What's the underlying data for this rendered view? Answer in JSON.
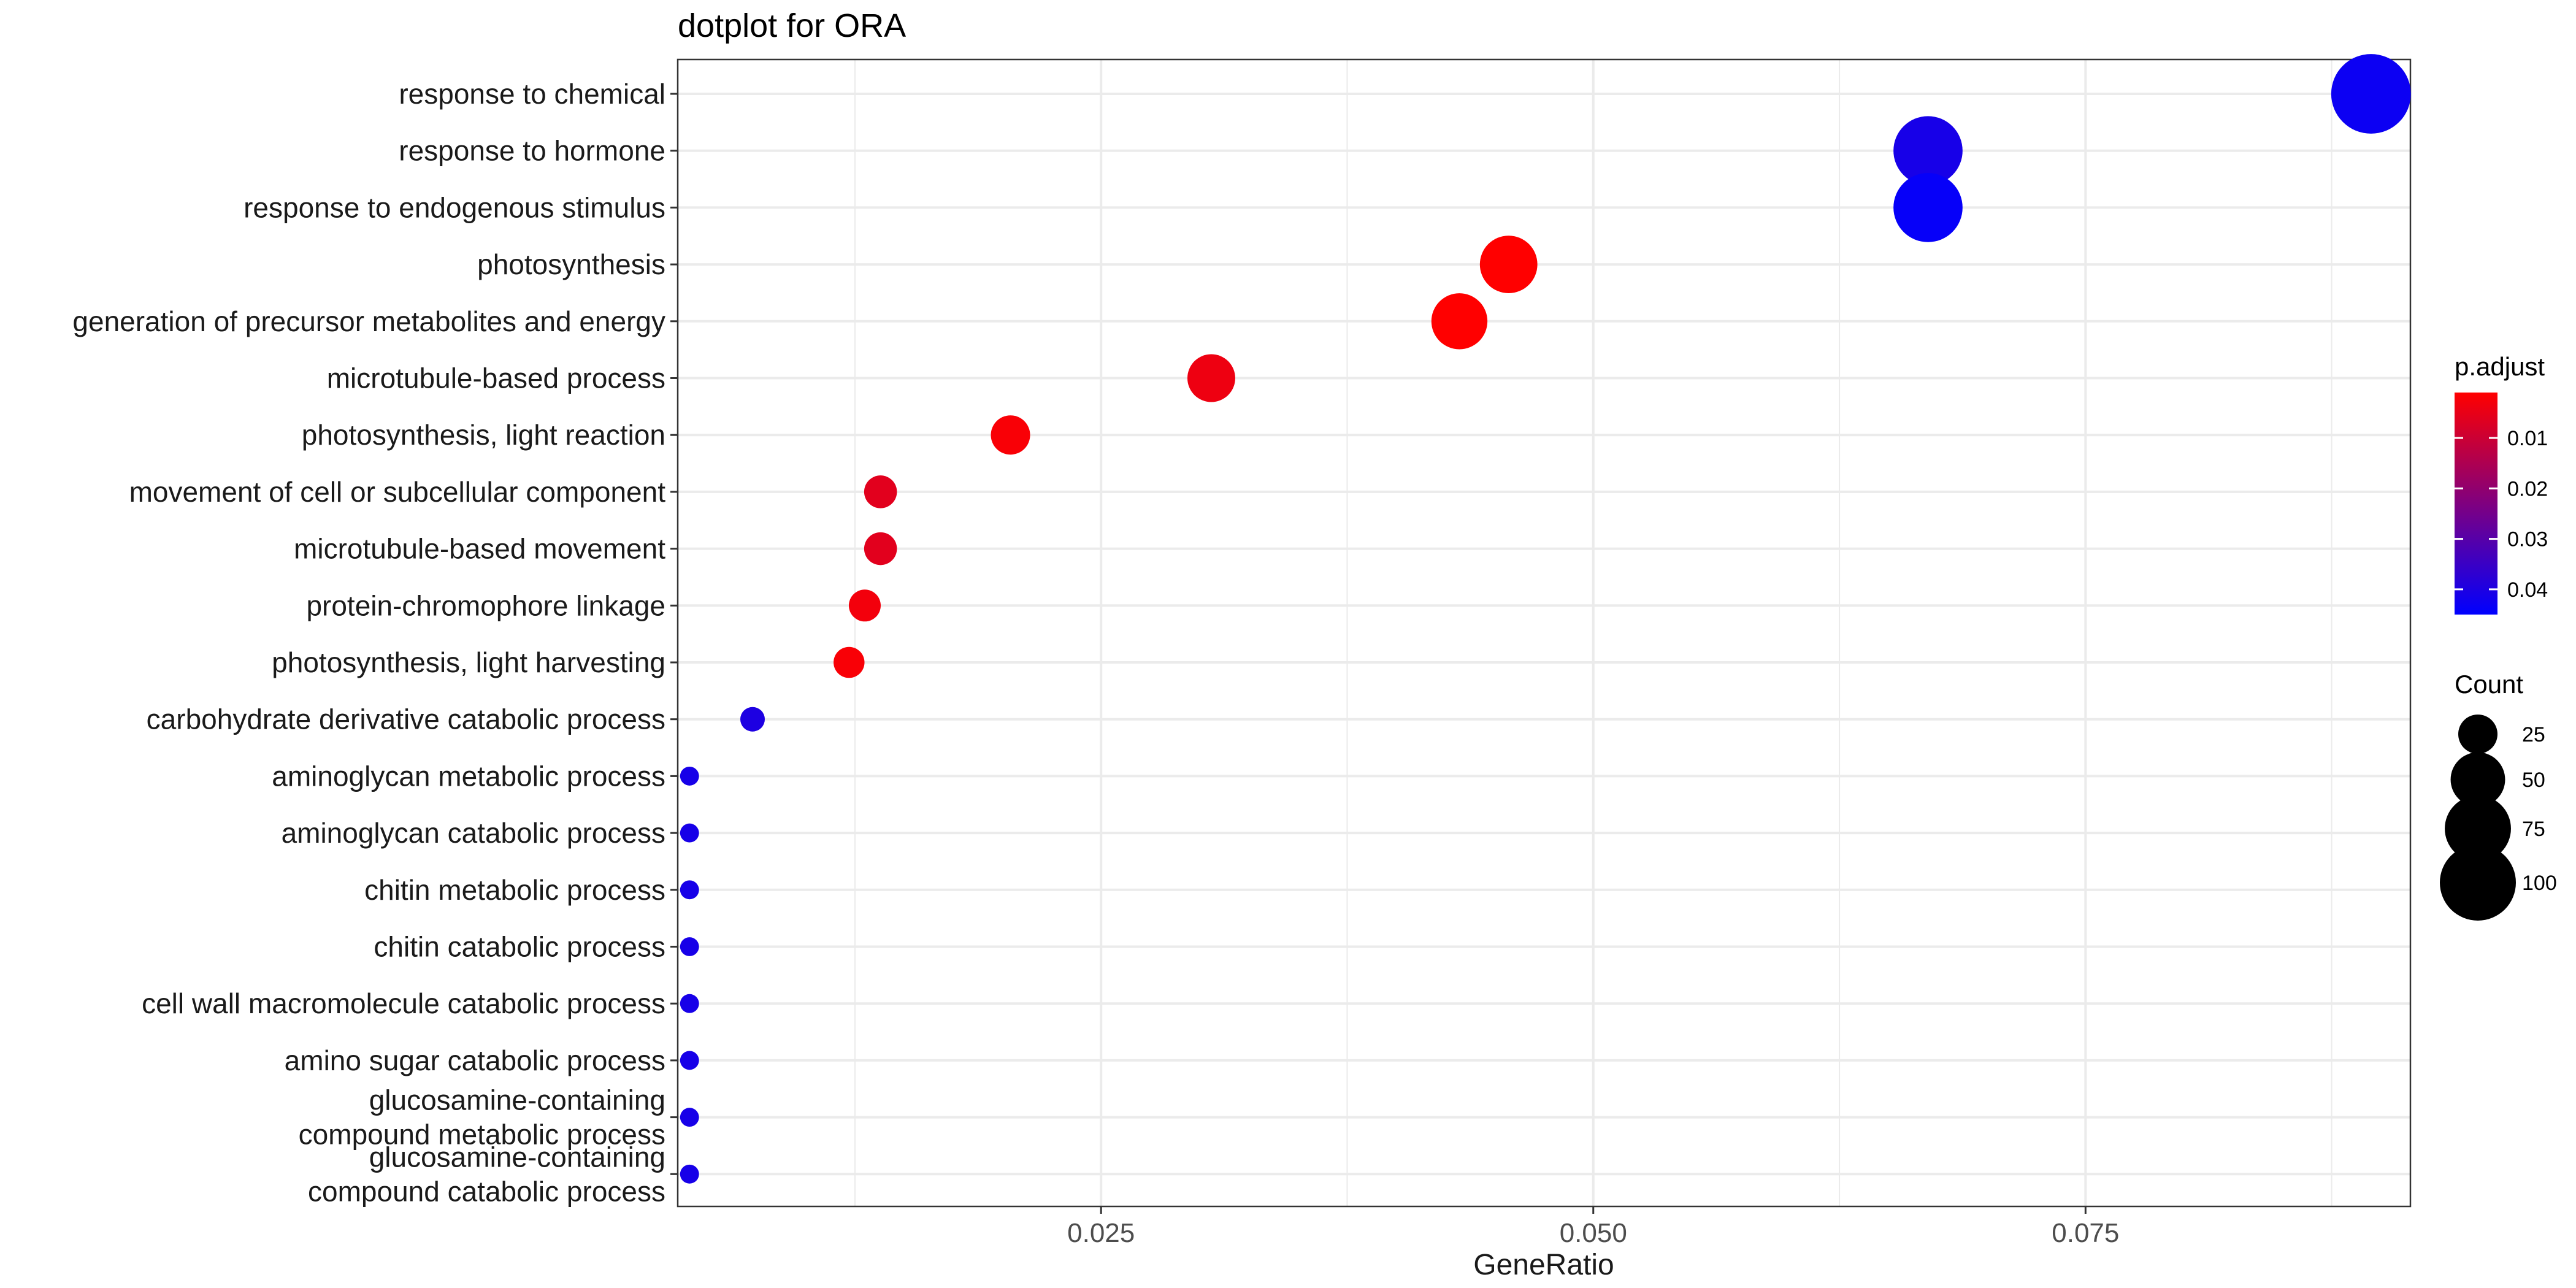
{
  "chart_data": {
    "type": "scatter",
    "title": "dotplot for ORA",
    "xlabel": "GeneRatio",
    "ylabel": "",
    "xlim": [
      0.0035,
      0.0915
    ],
    "xticks": [
      0.025,
      0.05,
      0.075
    ],
    "xtick_labels": [
      "0.025",
      "0.050",
      "0.075"
    ],
    "grid": true,
    "categories": [
      "response to chemical",
      "response to hormone",
      "response to endogenous stimulus",
      "photosynthesis",
      "generation of precursor metabolites and energy",
      "microtubule-based process",
      "photosynthesis, light reaction",
      "movement of cell or subcellular component",
      "microtubule-based movement",
      "protein-chromophore linkage",
      "photosynthesis, light harvesting",
      "carbohydrate derivative catabolic process",
      "aminoglycan metabolic process",
      "aminoglycan catabolic process",
      "chitin metabolic process",
      "chitin catabolic process",
      "cell wall macromolecule catabolic process",
      "amino sugar catabolic process",
      "glucosamine-containing\ncompound metabolic process",
      "glucosamine-containing\ncompound catabolic process"
    ],
    "gene_ratio": [
      0.0895,
      0.067,
      0.067,
      0.0457,
      0.0432,
      0.0306,
      0.0204,
      0.0138,
      0.0138,
      0.013,
      0.0122,
      0.0073,
      0.0041,
      0.0041,
      0.0041,
      0.0041,
      0.0041,
      0.0041,
      0.0041,
      0.0041
    ],
    "count": [
      110,
      82,
      82,
      56,
      53,
      38,
      25,
      17,
      17,
      16,
      15,
      9,
      5,
      5,
      5,
      5,
      5,
      5,
      5,
      5
    ],
    "p_adjust": [
      0.043,
      0.041,
      0.044,
      0.001,
      0.001,
      0.004,
      0.002,
      0.006,
      0.006,
      0.003,
      0.002,
      0.04,
      0.041,
      0.041,
      0.041,
      0.041,
      0.041,
      0.041,
      0.041,
      0.041
    ],
    "color_legend": {
      "title": "p.adjust",
      "ticks": [
        0.01,
        0.02,
        0.03,
        0.04
      ],
      "tick_labels": [
        "0.01",
        "0.02",
        "0.03",
        "0.04"
      ],
      "range": [
        0.001,
        0.045
      ],
      "low_color": "#ff0000",
      "high_color": "#0000ff"
    },
    "size_legend": {
      "title": "Count",
      "values": [
        25,
        50,
        75,
        100
      ],
      "labels": [
        "25",
        "50",
        "75",
        "100"
      ]
    },
    "legend_position": "right"
  }
}
